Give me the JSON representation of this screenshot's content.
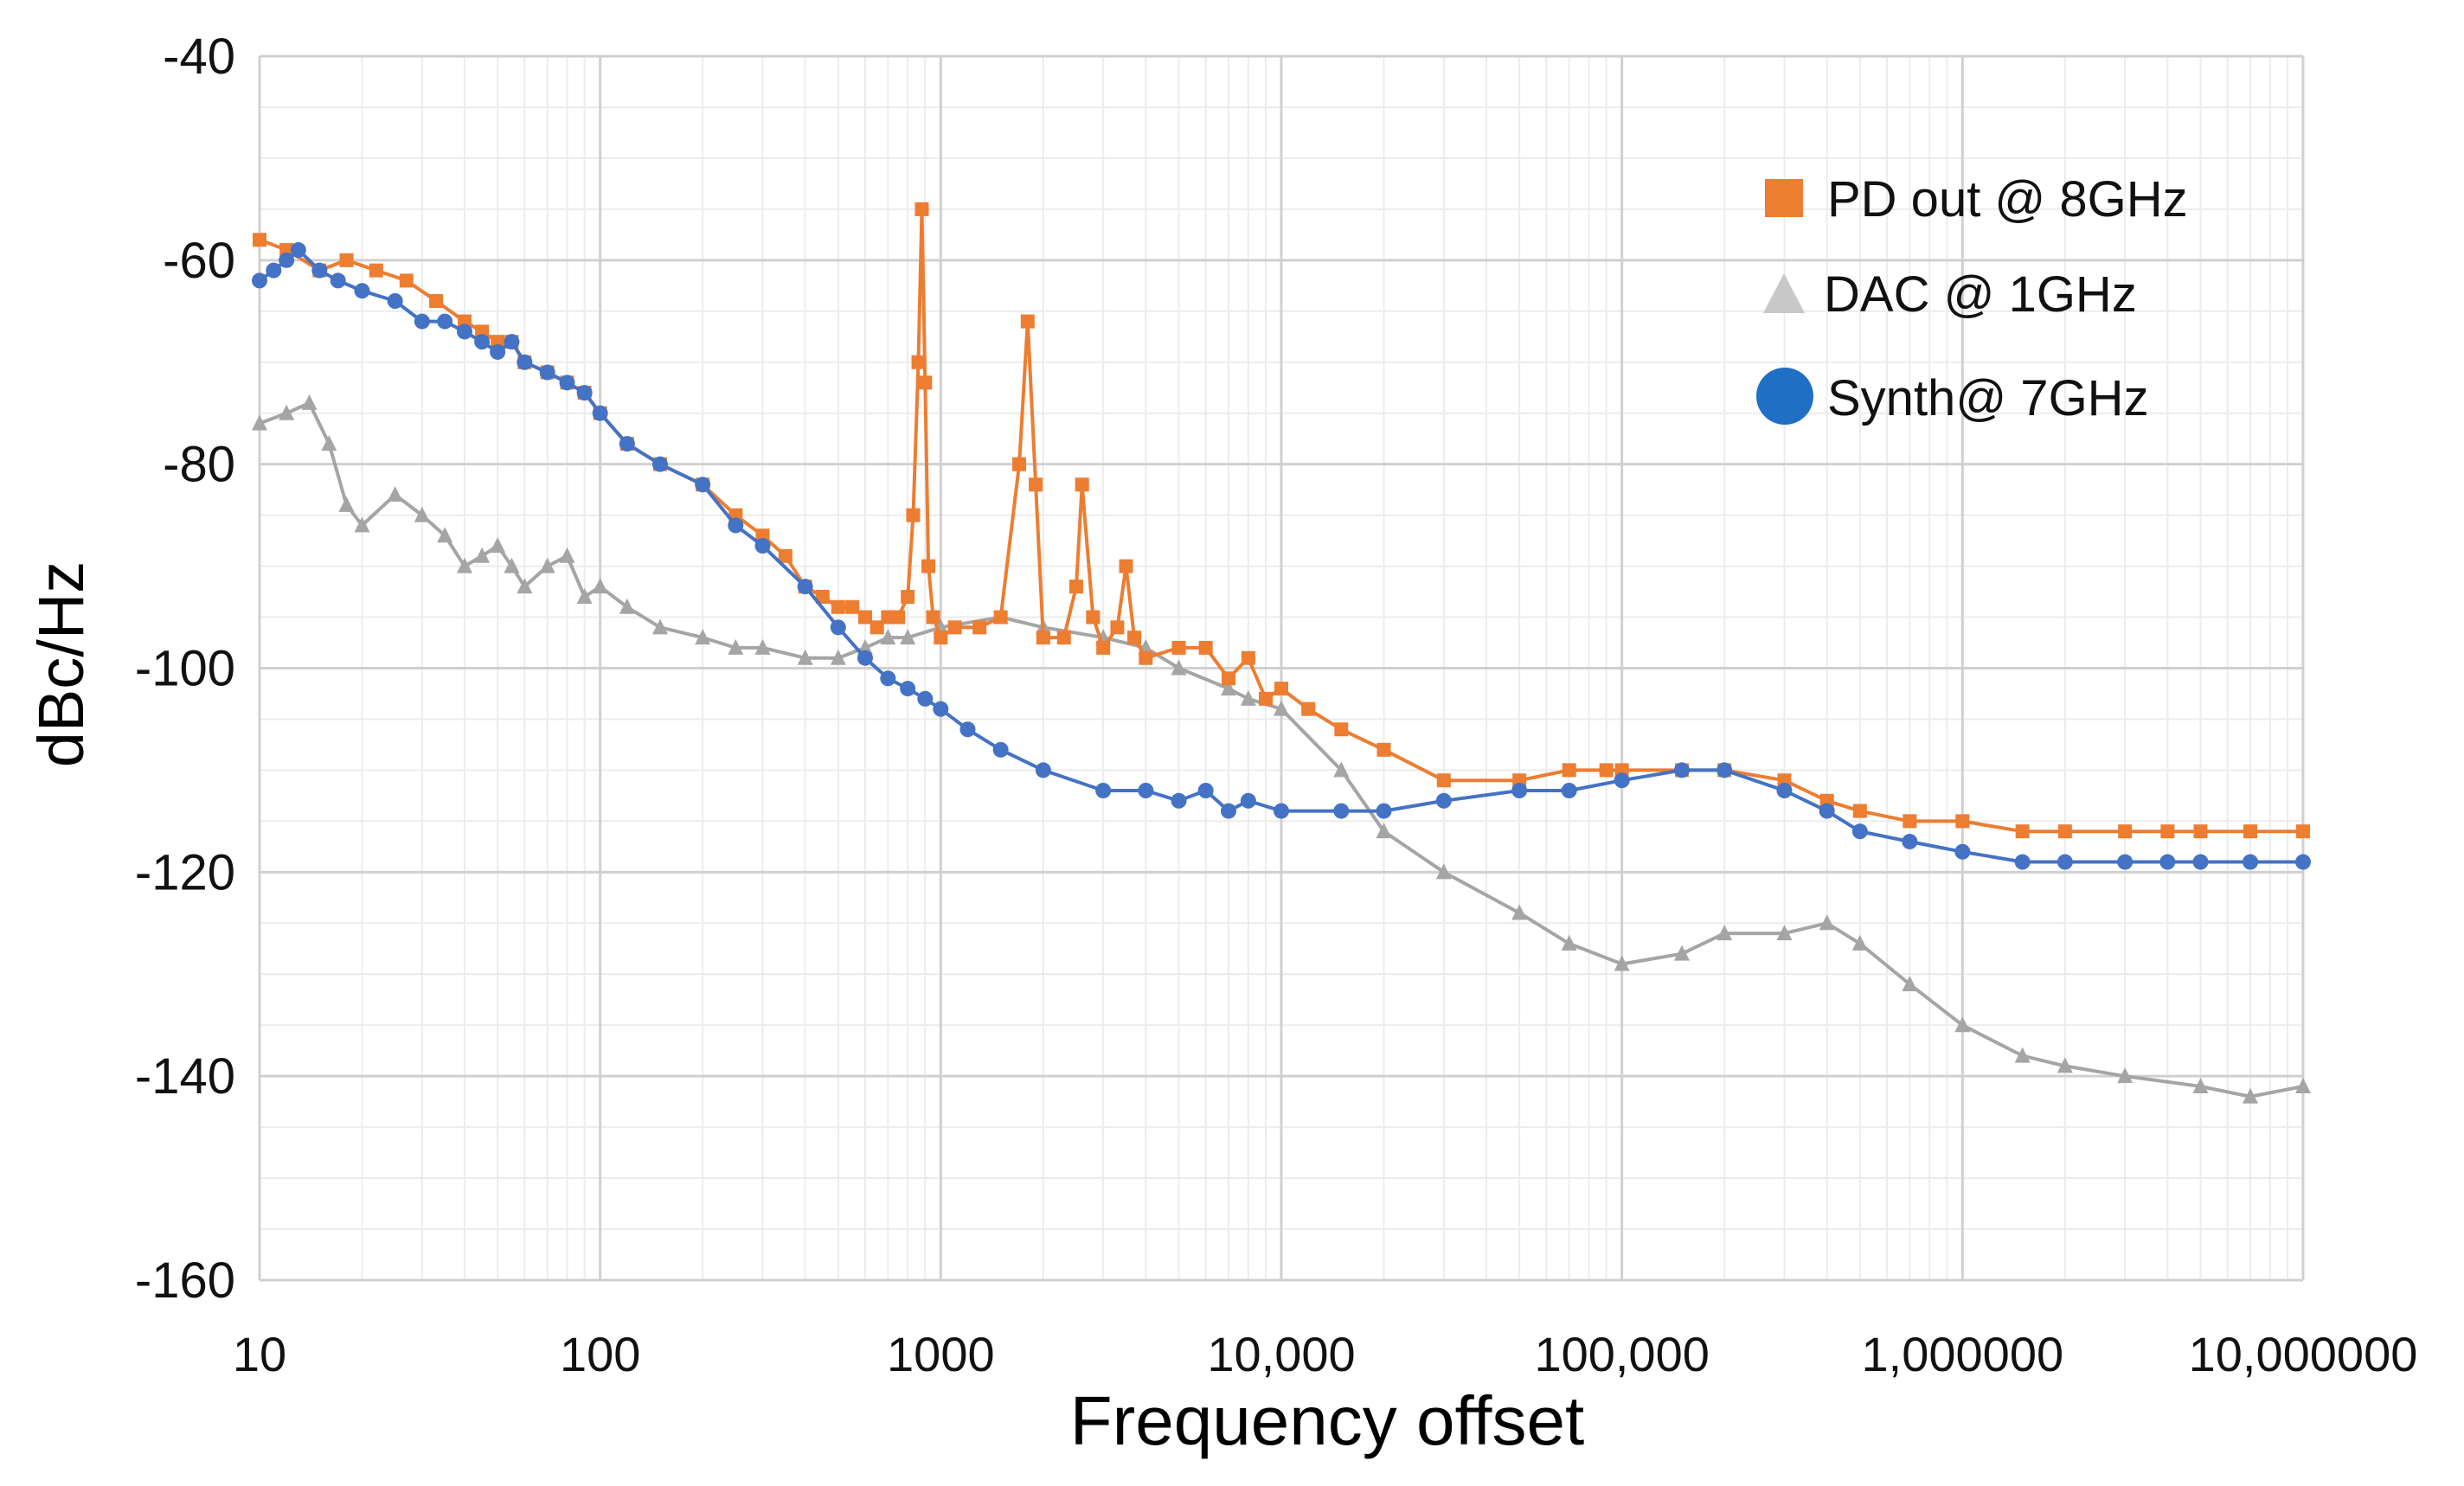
{
  "chart_data": {
    "type": "line",
    "xlabel": "Frequency offset",
    "ylabel": "dBc/Hz",
    "x_scale": "log",
    "xlim": [
      10,
      10000000
    ],
    "ylim": [
      -160,
      -40
    ],
    "x_ticks": [
      10,
      100,
      1000,
      10000,
      100000,
      1000000,
      10000000
    ],
    "x_tick_labels": [
      "10",
      "100",
      "1000",
      "10,000",
      "100,000",
      "1,000000",
      "10,000000"
    ],
    "y_ticks": [
      -40,
      -60,
      -80,
      -100,
      -120,
      -140,
      -160
    ],
    "y_tick_labels": [
      "-40",
      "-60",
      "-80",
      "-100",
      "-120",
      "-140",
      "-160"
    ],
    "grid": true,
    "legend_position": "top-right",
    "series": [
      {
        "name": "PD out @ 8GHz",
        "color": "#ED7D31",
        "marker": "square",
        "x": [
          10,
          12,
          15,
          18,
          22,
          27,
          33,
          40,
          45,
          50,
          55,
          60,
          70,
          80,
          90,
          100,
          120,
          150,
          200,
          250,
          300,
          350,
          400,
          450,
          500,
          550,
          600,
          650,
          700,
          750,
          800,
          830,
          860,
          880,
          900,
          920,
          950,
          1000,
          1100,
          1300,
          1500,
          1700,
          1800,
          1900,
          2000,
          2300,
          2500,
          2600,
          2800,
          3000,
          3300,
          3500,
          3700,
          4000,
          5000,
          6000,
          7000,
          8000,
          9000,
          10000,
          12000,
          15000,
          20000,
          30000,
          50000,
          70000,
          90000,
          100000,
          150000,
          200000,
          300000,
          400000,
          500000,
          700000,
          1000000,
          1500000,
          2000000,
          3000000,
          4000000,
          5000000,
          7000000,
          10000000
        ],
        "y": [
          -58,
          -59,
          -61,
          -60,
          -61,
          -62,
          -64,
          -66,
          -67,
          -68,
          -68,
          -70,
          -71,
          -72,
          -73,
          -75,
          -78,
          -80,
          -82,
          -85,
          -87,
          -89,
          -92,
          -93,
          -94,
          -94,
          -95,
          -96,
          -95,
          -95,
          -93,
          -85,
          -70,
          -55,
          -72,
          -90,
          -95,
          -97,
          -96,
          -96,
          -95,
          -80,
          -66,
          -82,
          -97,
          -97,
          -92,
          -82,
          -95,
          -98,
          -96,
          -90,
          -97,
          -99,
          -98,
          -98,
          -101,
          -99,
          -103,
          -102,
          -104,
          -106,
          -108,
          -111,
          -111,
          -110,
          -110,
          -110,
          -110,
          -110,
          -111,
          -113,
          -114,
          -115,
          -115,
          -116,
          -116,
          -116,
          -116,
          -116,
          -116,
          -116
        ]
      },
      {
        "name": "DAC @ 1GHz",
        "color": "#A5A5A5",
        "marker": "triangle",
        "x": [
          10,
          12,
          14,
          16,
          18,
          20,
          25,
          30,
          35,
          40,
          45,
          50,
          55,
          60,
          70,
          80,
          90,
          100,
          120,
          150,
          200,
          250,
          300,
          400,
          500,
          600,
          700,
          800,
          1000,
          1500,
          2000,
          3000,
          4000,
          5000,
          7000,
          8000,
          10000,
          15000,
          20000,
          30000,
          50000,
          70000,
          100000,
          150000,
          200000,
          300000,
          400000,
          500000,
          700000,
          1000000,
          1500000,
          2000000,
          3000000,
          5000000,
          7000000,
          10000000
        ],
        "y": [
          -76,
          -75,
          -74,
          -78,
          -84,
          -86,
          -83,
          -85,
          -87,
          -90,
          -89,
          -88,
          -90,
          -92,
          -90,
          -89,
          -93,
          -92,
          -94,
          -96,
          -97,
          -98,
          -98,
          -99,
          -99,
          -98,
          -97,
          -97,
          -96,
          -95,
          -96,
          -97,
          -98,
          -100,
          -102,
          -103,
          -104,
          -110,
          -116,
          -120,
          -124,
          -127,
          -129,
          -128,
          -126,
          -126,
          -125,
          -127,
          -131,
          -135,
          -138,
          -139,
          -140,
          -141,
          -142,
          -141
        ]
      },
      {
        "name": "Synth@ 7GHz",
        "color": "#4472C4",
        "marker": "circle",
        "x": [
          10,
          11,
          12,
          13,
          15,
          17,
          20,
          25,
          30,
          35,
          40,
          45,
          50,
          55,
          60,
          70,
          80,
          90,
          100,
          120,
          150,
          200,
          250,
          300,
          400,
          500,
          600,
          700,
          800,
          900,
          1000,
          1200,
          1500,
          2000,
          3000,
          4000,
          5000,
          6000,
          7000,
          8000,
          10000,
          15000,
          20000,
          30000,
          50000,
          70000,
          100000,
          150000,
          200000,
          300000,
          400000,
          500000,
          700000,
          1000000,
          1500000,
          2000000,
          3000000,
          4000000,
          5000000,
          7000000,
          10000000
        ],
        "y": [
          -62,
          -61,
          -60,
          -59,
          -61,
          -62,
          -63,
          -64,
          -66,
          -66,
          -67,
          -68,
          -69,
          -68,
          -70,
          -71,
          -72,
          -73,
          -75,
          -78,
          -80,
          -82,
          -86,
          -88,
          -92,
          -96,
          -99,
          -101,
          -102,
          -103,
          -104,
          -106,
          -108,
          -110,
          -112,
          -112,
          -113,
          -112,
          -114,
          -113,
          -114,
          -114,
          -114,
          -113,
          -112,
          -112,
          -111,
          -110,
          -110,
          -112,
          -114,
          -116,
          -117,
          -118,
          -119,
          -119,
          -119,
          -119,
          -119,
          -119,
          -119
        ]
      }
    ]
  }
}
